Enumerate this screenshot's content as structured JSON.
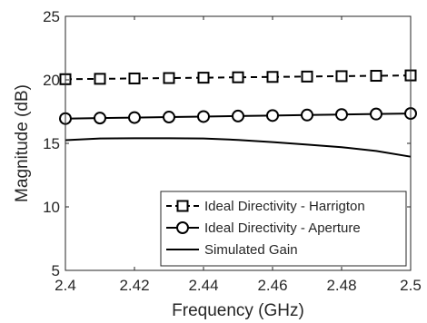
{
  "chart_data": {
    "type": "line",
    "title": "",
    "xlabel": "Frequency (GHz)",
    "ylabel": "Magnitude (dB)",
    "xlim": [
      2.4,
      2.5
    ],
    "ylim": [
      5,
      25
    ],
    "xticks": [
      "2.4",
      "2.42",
      "2.44",
      "2.46",
      "2.48",
      "2.5"
    ],
    "yticks": [
      "5",
      "10",
      "15",
      "20",
      "25"
    ],
    "grid": false,
    "legend_position": "bottom-right",
    "x": [
      2.4,
      2.41,
      2.42,
      2.43,
      2.44,
      2.45,
      2.46,
      2.47,
      2.48,
      2.49,
      2.5
    ],
    "series": [
      {
        "name": "Ideal Directivity - Harrigton",
        "style": "dashed",
        "marker": "square",
        "color": "#000000",
        "values": [
          20.05,
          20.08,
          20.11,
          20.14,
          20.17,
          20.2,
          20.23,
          20.26,
          20.29,
          20.32,
          20.35
        ]
      },
      {
        "name": "Ideal Directivity - Aperture",
        "style": "solid",
        "marker": "circle",
        "color": "#000000",
        "values": [
          16.95,
          16.99,
          17.03,
          17.07,
          17.11,
          17.15,
          17.19,
          17.23,
          17.27,
          17.31,
          17.35
        ]
      },
      {
        "name": "Simulated Gain",
        "style": "solid",
        "marker": "none",
        "color": "#000000",
        "values": [
          15.25,
          15.38,
          15.4,
          15.4,
          15.38,
          15.27,
          15.1,
          14.9,
          14.7,
          14.4,
          13.95
        ]
      }
    ]
  }
}
